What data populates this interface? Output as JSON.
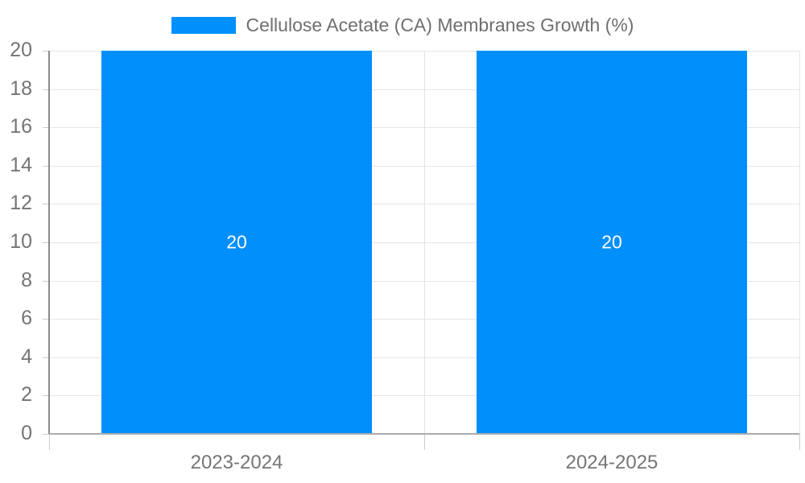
{
  "legend": {
    "label": "Cellulose Acetate (CA) Membranes Growth (%)",
    "swatch_color": "#008ffb"
  },
  "chart_data": {
    "type": "bar",
    "title": "Cellulose Acetate (CA) Membranes Growth (%)",
    "categories": [
      "2023-2024",
      "2024-2025"
    ],
    "series": [
      {
        "name": "Cellulose Acetate (CA) Membranes Growth (%)",
        "values": [
          20,
          20
        ]
      }
    ],
    "value_labels": [
      "20",
      "20"
    ],
    "xlabel": "",
    "ylabel": "",
    "ylim": [
      0,
      20
    ],
    "ytick_step": 2,
    "yticks": [
      0,
      2,
      4,
      6,
      8,
      10,
      12,
      14,
      16,
      18,
      20
    ],
    "grid": true,
    "legend_position": "top",
    "bar_width_fraction": 0.72,
    "colors": {
      "bar": "#008ffb",
      "value_label": "#ffffff",
      "axis_text": "#757575",
      "legend_text": "#6f6f6f",
      "gridline": "#e6e6e6",
      "boundary_line": "#e3e3e3",
      "axis_line_left": "#8a8a8a",
      "axis_line_bottom": "#ababab",
      "tick": "#cccccc"
    }
  }
}
